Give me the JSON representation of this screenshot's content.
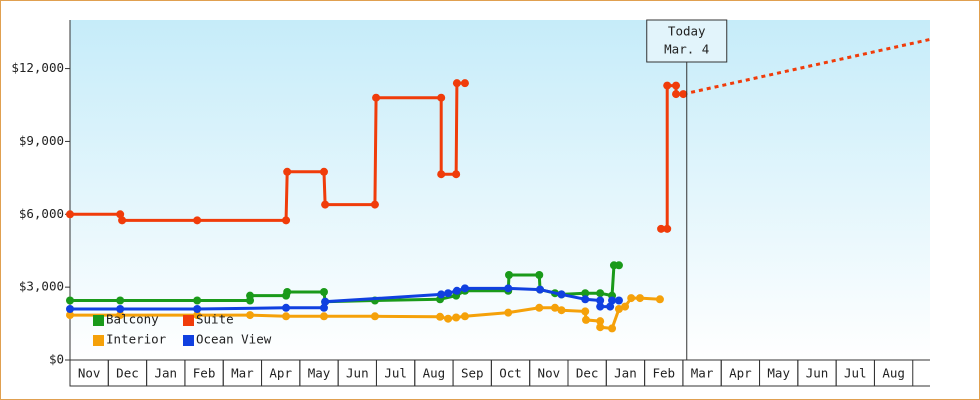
{
  "chart_data": {
    "type": "line",
    "categories": [
      "Nov",
      "Dec",
      "Jan",
      "Feb",
      "Mar",
      "Apr",
      "May",
      "Jun",
      "Jul",
      "Aug",
      "Sep",
      "Oct",
      "Nov",
      "Dec",
      "Jan",
      "Feb",
      "Mar",
      "Apr",
      "May",
      "Jun",
      "Jul",
      "Aug"
    ],
    "xlim": [
      0,
      22.45
    ],
    "ylim": [
      0,
      14000
    ],
    "yticks": [
      {
        "value": 0,
        "label": "$0"
      },
      {
        "value": 3000,
        "label": "$3,000"
      },
      {
        "value": 6000,
        "label": "$6,000"
      },
      {
        "value": 9000,
        "label": "$9,000"
      },
      {
        "value": 12000,
        "label": "$12,000"
      }
    ],
    "grid": false,
    "legend": "bottom-left",
    "series": [
      {
        "name": "Balcony",
        "color": "#1a9a1a",
        "x": [
          0,
          1.31,
          3.32,
          4.7,
          4.7,
          5.64,
          5.67,
          6.63,
          6.66,
          7.96,
          9.66,
          10.08,
          10.31,
          11.44,
          11.46,
          12.25,
          12.27,
          12.66,
          12.83,
          13.45,
          13.84,
          14.15,
          14.2,
          14.33
        ],
        "values": [
          2450,
          2450,
          2450,
          2450,
          2650,
          2650,
          2800,
          2800,
          2400,
          2450,
          2500,
          2650,
          2850,
          2850,
          3500,
          3500,
          2900,
          2750,
          2700,
          2750,
          2750,
          2650,
          3900,
          3900
        ]
      },
      {
        "name": "Suite",
        "color": "#f03c0a",
        "x": [
          0,
          1.31,
          1.36,
          3.32,
          5.64,
          5.67,
          6.63,
          6.66,
          7.96,
          7.99,
          9.69,
          9.69,
          10.08,
          10.1,
          10.31,
          12,
          15.43,
          15.59,
          15.59,
          15.82,
          15.82,
          16.01
        ],
        "values": [
          6000,
          6000,
          5750,
          5750,
          5750,
          7750,
          7750,
          6400,
          6400,
          10800,
          10800,
          7650,
          7650,
          11400,
          11400,
          null,
          5400,
          5400,
          11300,
          11300,
          10950,
          10950
        ]
      },
      {
        "name": "Interior",
        "color": "#f5a10a",
        "x": [
          0,
          1.31,
          3.32,
          4.7,
          5.64,
          6.63,
          7.96,
          9.66,
          9.87,
          10.08,
          10.31,
          11.44,
          12.25,
          12.66,
          12.83,
          13.45,
          13.47,
          13.84,
          13.84,
          14.15,
          14.33,
          14.49,
          14.65,
          14.88,
          15.4
        ],
        "values": [
          1850,
          1850,
          1850,
          1850,
          1800,
          1800,
          1800,
          1780,
          1700,
          1750,
          1800,
          1950,
          2150,
          2150,
          2050,
          2000,
          1650,
          1600,
          1350,
          1300,
          2100,
          2200,
          2550,
          2550,
          2500
        ]
      },
      {
        "name": "Ocean View",
        "color": "#1040e0",
        "x": [
          0,
          1.31,
          3.32,
          5.64,
          6.63,
          6.66,
          9.69,
          9.87,
          10.1,
          10.31,
          11.44,
          12.27,
          12.83,
          13.45,
          13.84,
          13.84,
          14.1,
          14.15,
          14.33
        ],
        "values": [
          2100,
          2100,
          2100,
          2150,
          2150,
          2400,
          2700,
          2750,
          2850,
          2950,
          2950,
          2900,
          2700,
          2500,
          2450,
          2200,
          2200,
          2450,
          2450
        ]
      }
    ],
    "projection": {
      "color": "#f03c0a",
      "x": [
        16.01,
        22.45
      ],
      "values": [
        10950,
        13200
      ]
    },
    "annotation": {
      "text": [
        "Today",
        "Mar. 4"
      ],
      "x": 16.1
    }
  }
}
